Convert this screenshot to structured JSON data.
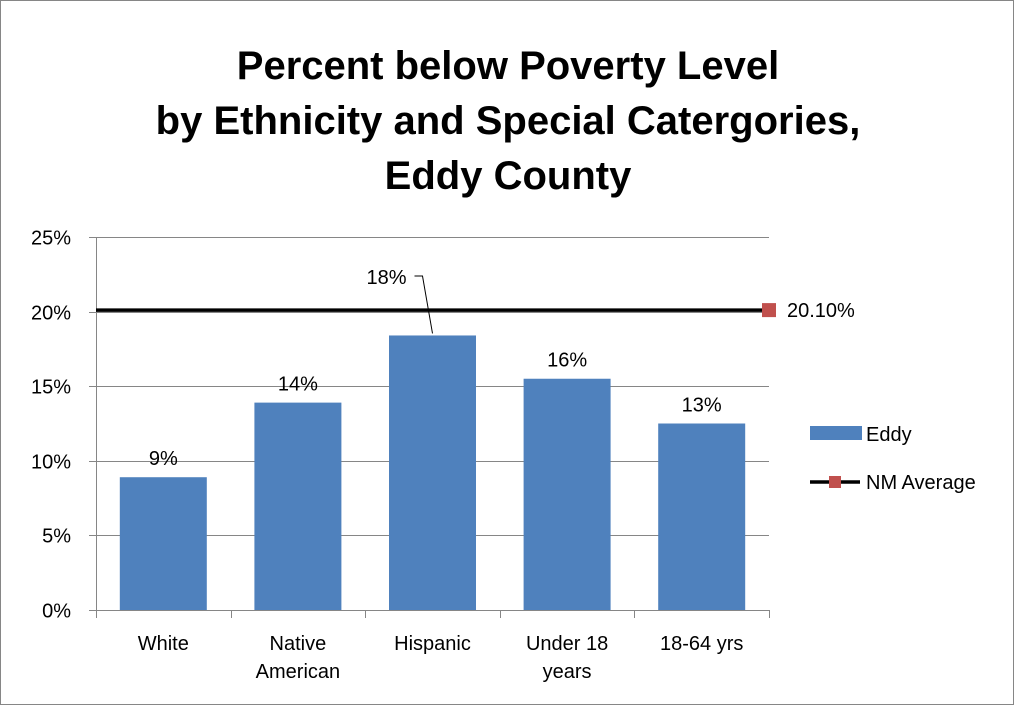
{
  "chart_data": {
    "type": "bar",
    "title_lines": [
      "Percent below Poverty Level",
      "by Ethnicity and Special Catergories,",
      "Eddy County"
    ],
    "categories": [
      [
        "White"
      ],
      [
        "Native",
        "American"
      ],
      [
        "Hispanic"
      ],
      [
        "Under 18",
        "years"
      ],
      [
        "18-64 yrs"
      ]
    ],
    "series": [
      {
        "name": "Eddy",
        "type": "bar",
        "color": "#4f81bd",
        "values": [
          8.9,
          13.9,
          18.4,
          15.5,
          12.5
        ],
        "data_labels": [
          "9%",
          "14%",
          "18%",
          "16%",
          "13%"
        ]
      },
      {
        "name": "NM Average",
        "type": "line",
        "color": "#000000",
        "marker_color": "#c0504d",
        "value": 20.1,
        "data_label": "20.10%"
      }
    ],
    "ylim": [
      0,
      25
    ],
    "y_ticks": [
      0,
      5,
      10,
      15,
      20,
      25
    ],
    "y_tick_labels": [
      "0%",
      "5%",
      "10%",
      "15%",
      "20%",
      "25%"
    ],
    "xlabel": "",
    "ylabel": "",
    "grid": true,
    "legend_position": "right"
  }
}
